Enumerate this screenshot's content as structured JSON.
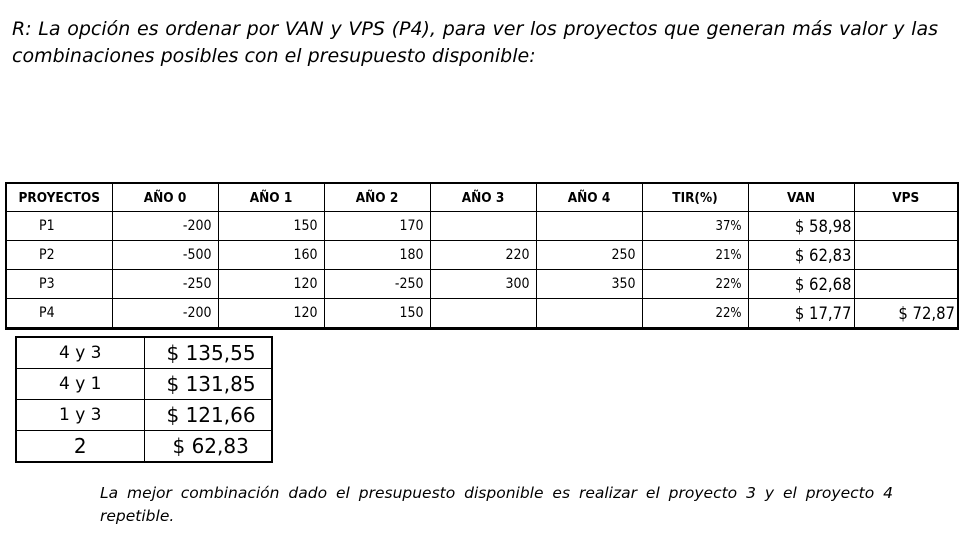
{
  "intro": {
    "text": "R: La opción es ordenar por VAN y VPS (P4), para ver los proyectos que generan más valor y las combinaciones posibles con el presupuesto disponible:"
  },
  "projects_table": {
    "headers": [
      "PROYECTOS",
      "AÑO 0",
      "AÑO 1",
      "AÑO 2",
      "AÑO 3",
      "AÑO 4",
      "TIR(%)",
      "VAN",
      "VPS"
    ],
    "rows": [
      {
        "name": "P1",
        "y0": "-200",
        "y1": "150",
        "y2": "170",
        "y3": "",
        "y4": "",
        "tir": "37%",
        "van": "$ 58,98",
        "vps": ""
      },
      {
        "name": "P2",
        "y0": "-500",
        "y1": "160",
        "y2": "180",
        "y3": "220",
        "y4": "250",
        "tir": "21%",
        "van": "$ 62,83",
        "vps": ""
      },
      {
        "name": "P3",
        "y0": "-250",
        "y1": "120",
        "y2": "-250",
        "y3": "300",
        "y4": "350",
        "tir": "22%",
        "van": "$ 62,68",
        "vps": ""
      },
      {
        "name": "P4",
        "y0": "-200",
        "y1": "120",
        "y2": "150",
        "y3": "",
        "y4": "",
        "tir": "22%",
        "van": "$ 17,77",
        "vps": "$ 72,87"
      }
    ]
  },
  "combinations_table": {
    "rows": [
      {
        "combo": "4 y 3",
        "value": "$ 135,55"
      },
      {
        "combo": "4 y 1",
        "value": "$ 131,85"
      },
      {
        "combo": "1 y 3",
        "value": "$ 121,66"
      },
      {
        "combo": "2",
        "value": "$ 62,83"
      }
    ]
  },
  "conclusion": {
    "text": "La mejor combinación dado el presupuesto disponible es realizar el proyecto 3 y el proyecto 4 repetible."
  }
}
